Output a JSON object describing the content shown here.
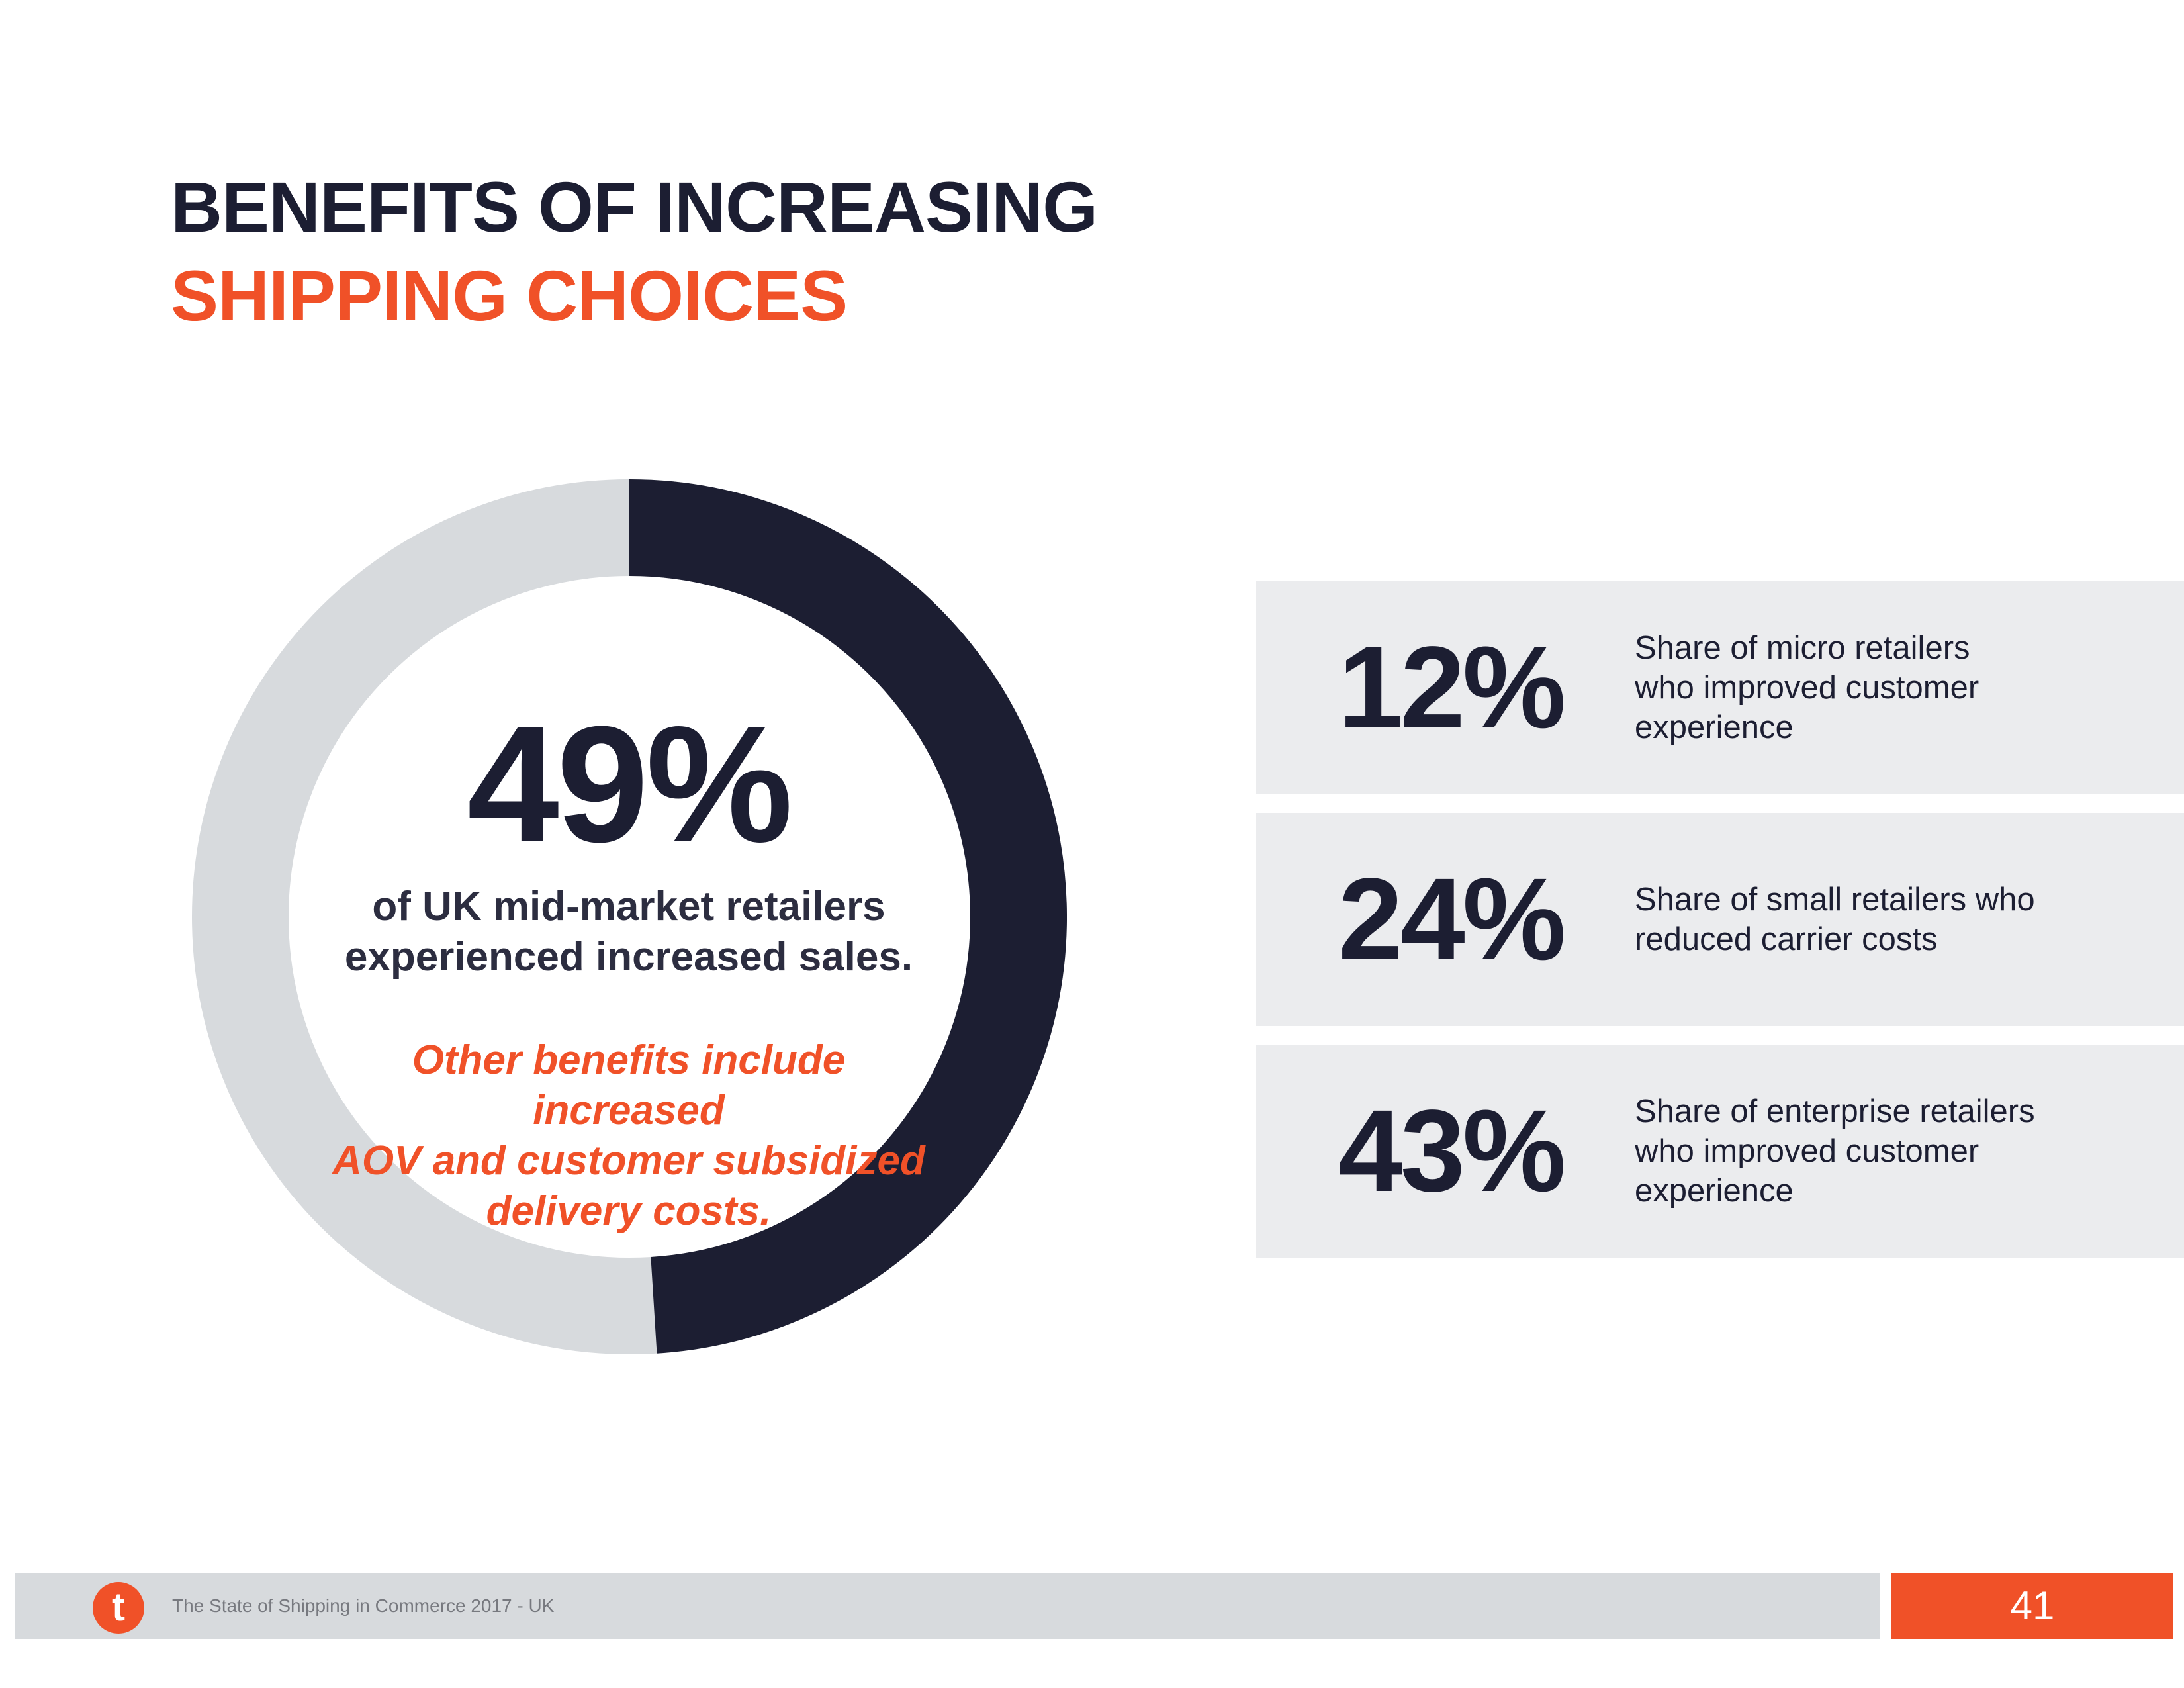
{
  "title": {
    "line1": "BENEFITS OF INCREASING",
    "line2": "SHIPPING CHOICES"
  },
  "colors": {
    "navy": "#1c1e32",
    "orange": "#f05128",
    "ring_grey": "#d7dadd",
    "card_grey": "#ebecee"
  },
  "headline": {
    "value": "49%",
    "fraction": 0.49,
    "caption_line1": "of UK mid-market retailers",
    "caption_line2": "experienced increased sales.",
    "other_benefits_line1": "Other benefits include increased",
    "other_benefits_line2": "AOV and customer subsidized",
    "other_benefits_line3": "delivery costs."
  },
  "stats": [
    {
      "value": "12%",
      "line1": "Share of micro retailers",
      "line2": "who improved customer",
      "line3": "experience"
    },
    {
      "value": "24%",
      "line1": "Share of small retailers who",
      "line2": "reduced carrier costs"
    },
    {
      "value": "43%",
      "line1": "Share of enterprise retailers",
      "line2": "who improved customer",
      "line3": "experience"
    }
  ],
  "footer": {
    "logo_letter": "t",
    "text": "The State of Shipping in Commerce 2017 - UK",
    "page_number": "41"
  }
}
